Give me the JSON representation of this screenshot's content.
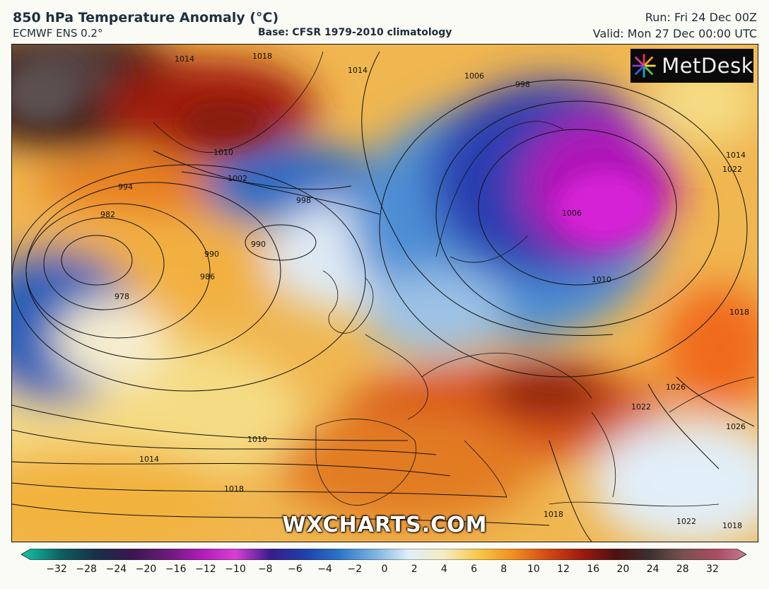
{
  "header": {
    "title": "850 hPa Temperature Anomaly (°C)",
    "model": "ECMWF ENS 0.2°",
    "base": "Base: CFSR 1979-2010 climatology",
    "run": "Run: Fri 24 Dec 00Z",
    "valid": "Valid: Mon 27 Dec 00:00 UTC"
  },
  "logo": {
    "text": "MetDesk"
  },
  "watermark": "WXCHARTS.COM",
  "isobar_labels": [
    "1014",
    "1018",
    "1014",
    "1006",
    "998",
    "1010",
    "1002",
    "994",
    "998",
    "982",
    "990",
    "990",
    "986",
    "978",
    "1006",
    "1010",
    "1014",
    "1018",
    "1022",
    "1026",
    "1026",
    "1010",
    "1014",
    "1018",
    "1018",
    "1022",
    "1018",
    "1022"
  ],
  "colorbar": {
    "ticks": [
      "−32",
      "−28",
      "−24",
      "−20",
      "−16",
      "−12",
      "−10",
      "−8",
      "−6",
      "−4",
      "−2",
      "0",
      "2",
      "4",
      "6",
      "8",
      "10",
      "12",
      "16",
      "20",
      "24",
      "28",
      "32"
    ],
    "colors": [
      "#13b89a",
      "#0e5f60",
      "#173049",
      "#3a1650",
      "#6b1a7a",
      "#b01cb8",
      "#d83fd6",
      "#3a1c8c",
      "#1e3fa8",
      "#2c74c8",
      "#7db3e0",
      "#dfeef8",
      "#f5ecc2",
      "#f5c84a",
      "#f08d1f",
      "#d24a14",
      "#9e1a10",
      "#4e1010",
      "#3c3030",
      "#7a5050",
      "#a84b62",
      "#c97a92",
      "#e9b4c6"
    ],
    "positions": [
      0.008,
      0.055,
      0.103,
      0.152,
      0.202,
      0.25,
      0.295,
      0.344,
      0.39,
      0.438,
      0.488,
      0.534,
      0.583,
      0.631,
      0.679,
      0.726,
      0.774,
      0.82,
      0.866,
      0.913,
      0.958,
      1.0,
      1.0
    ]
  }
}
